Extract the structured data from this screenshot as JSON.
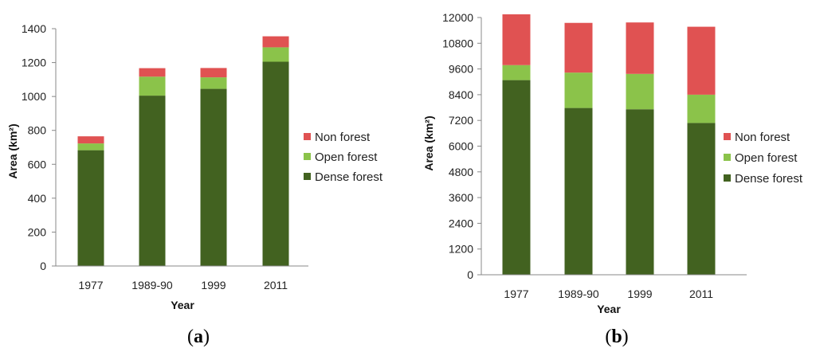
{
  "colors": {
    "dense_forest": "#426220",
    "open_forest": "#8bc34a",
    "non_forest": "#e05252",
    "axis": "#888888",
    "text": "#222222"
  },
  "chart_data": [
    {
      "id": "a",
      "type": "bar",
      "stacked": true,
      "panel_label": "(a)",
      "panel_letter": "a",
      "xlabel": "Year",
      "ylabel": "Area (km²)",
      "categories": [
        "1977",
        "1989-90",
        "1999",
        "2011"
      ],
      "ylim": [
        0,
        1400
      ],
      "yticks": [
        0,
        200,
        400,
        600,
        800,
        1000,
        1200,
        1400
      ],
      "ytick_labels": [
        "0",
        "200",
        "400",
        "600",
        "800",
        "1000",
        "1200",
        "1400"
      ],
      "legend_position": "right",
      "series": [
        {
          "name": "Dense forest",
          "color_key": "dense_forest",
          "values": [
            683,
            1005,
            1045,
            1205
          ]
        },
        {
          "name": "Open forest",
          "color_key": "open_forest",
          "values": [
            40,
            112,
            68,
            85
          ]
        },
        {
          "name": "Non forest",
          "color_key": "non_forest",
          "values": [
            42,
            50,
            55,
            65
          ]
        }
      ]
    },
    {
      "id": "b",
      "type": "bar",
      "stacked": true,
      "panel_label": "(b)",
      "panel_letter": "b",
      "xlabel": "Year",
      "ylabel": "Area (km²)",
      "categories": [
        "1977",
        "1989-90",
        "1999",
        "2011"
      ],
      "ylim": [
        0,
        12000
      ],
      "yticks": [
        0,
        1200,
        2400,
        3600,
        4800,
        6000,
        7200,
        8400,
        9600,
        10800,
        12000
      ],
      "ytick_labels": [
        "0",
        "1200",
        "2400",
        "3600",
        "4800",
        "6000",
        "7200",
        "8400",
        "9600",
        "10800",
        "12000"
      ],
      "legend_position": "right",
      "series": [
        {
          "name": "Dense forest",
          "color_key": "dense_forest",
          "values": [
            9080,
            7780,
            7720,
            7080
          ]
        },
        {
          "name": "Open forest",
          "color_key": "open_forest",
          "values": [
            700,
            1650,
            1650,
            1320
          ]
        },
        {
          "name": "Non forest",
          "color_key": "non_forest",
          "values": [
            2370,
            2320,
            2400,
            3170
          ]
        }
      ]
    }
  ]
}
